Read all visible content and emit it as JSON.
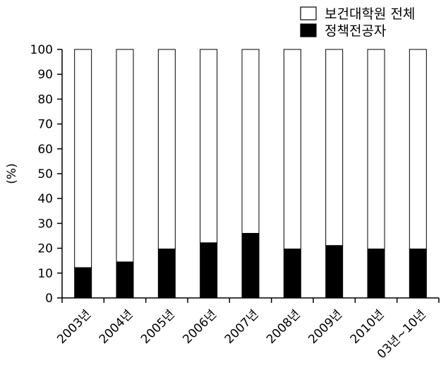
{
  "chart_data": {
    "type": "bar",
    "stacked": true,
    "categories": [
      "2003년",
      "2004년",
      "2005년",
      "2006년",
      "2007년",
      "2008년",
      "2009년",
      "2010년",
      "03년~10년"
    ],
    "series": [
      {
        "name": "정책전공자",
        "values": [
          12.2,
          14.5,
          19.7,
          22.2,
          26.0,
          19.7,
          21.1,
          19.7,
          19.7
        ],
        "color": "#000000"
      },
      {
        "name": "보건대학원 전체",
        "values": [
          87.8,
          85.5,
          80.3,
          77.8,
          74.0,
          80.3,
          78.9,
          80.3,
          80.3
        ],
        "color": "#ffffff"
      }
    ],
    "ylabel": "(%)",
    "ylim": [
      0,
      100
    ],
    "yticks": [
      0,
      10,
      20,
      30,
      40,
      50,
      60,
      70,
      80,
      90,
      100
    ],
    "grid": false,
    "legend": {
      "placement": "top-right",
      "entries": [
        {
          "label": "보건대학원 전체",
          "color": "#ffffff"
        },
        {
          "label": "정책전공자",
          "color": "#000000"
        }
      ]
    }
  }
}
